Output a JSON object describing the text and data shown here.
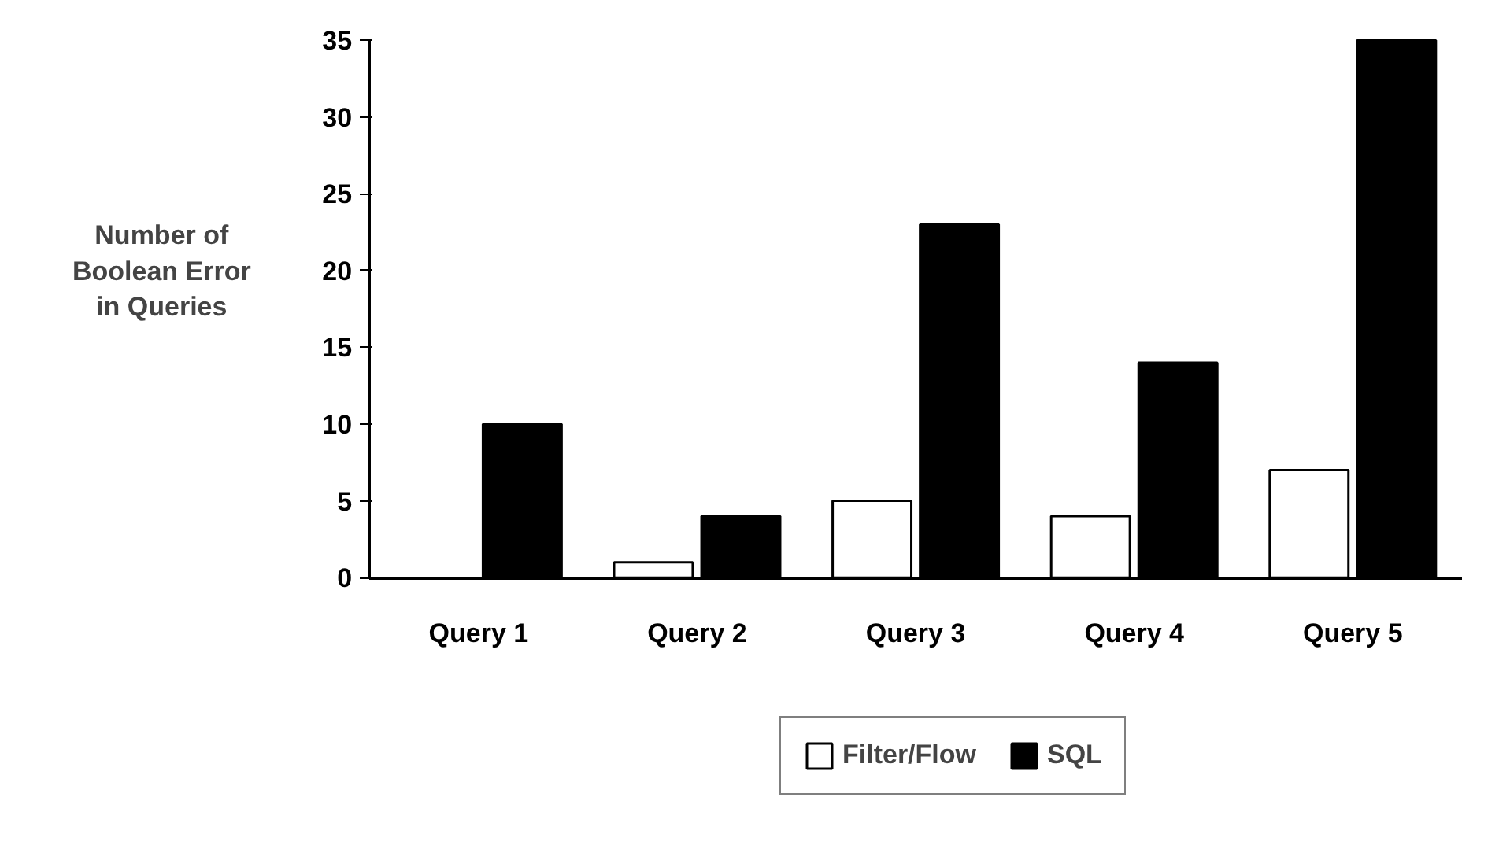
{
  "chart_data": {
    "type": "bar",
    "ylabel": "Number of\nBoolean Error\nin Queries",
    "categories": [
      "Query 1",
      "Query 2",
      "Query 3",
      "Query 4",
      "Query 5"
    ],
    "series": [
      {
        "name": "Filter/Flow",
        "color": "#ffffff",
        "values": [
          0,
          1,
          5,
          4,
          7
        ]
      },
      {
        "name": "SQL",
        "color": "#000000",
        "values": [
          10,
          4,
          23,
          14,
          35
        ]
      }
    ],
    "ylim": [
      0,
      35
    ],
    "yticks": [
      0,
      5,
      10,
      15,
      20,
      25,
      30,
      35
    ],
    "grid": false,
    "legend": "bottom"
  }
}
